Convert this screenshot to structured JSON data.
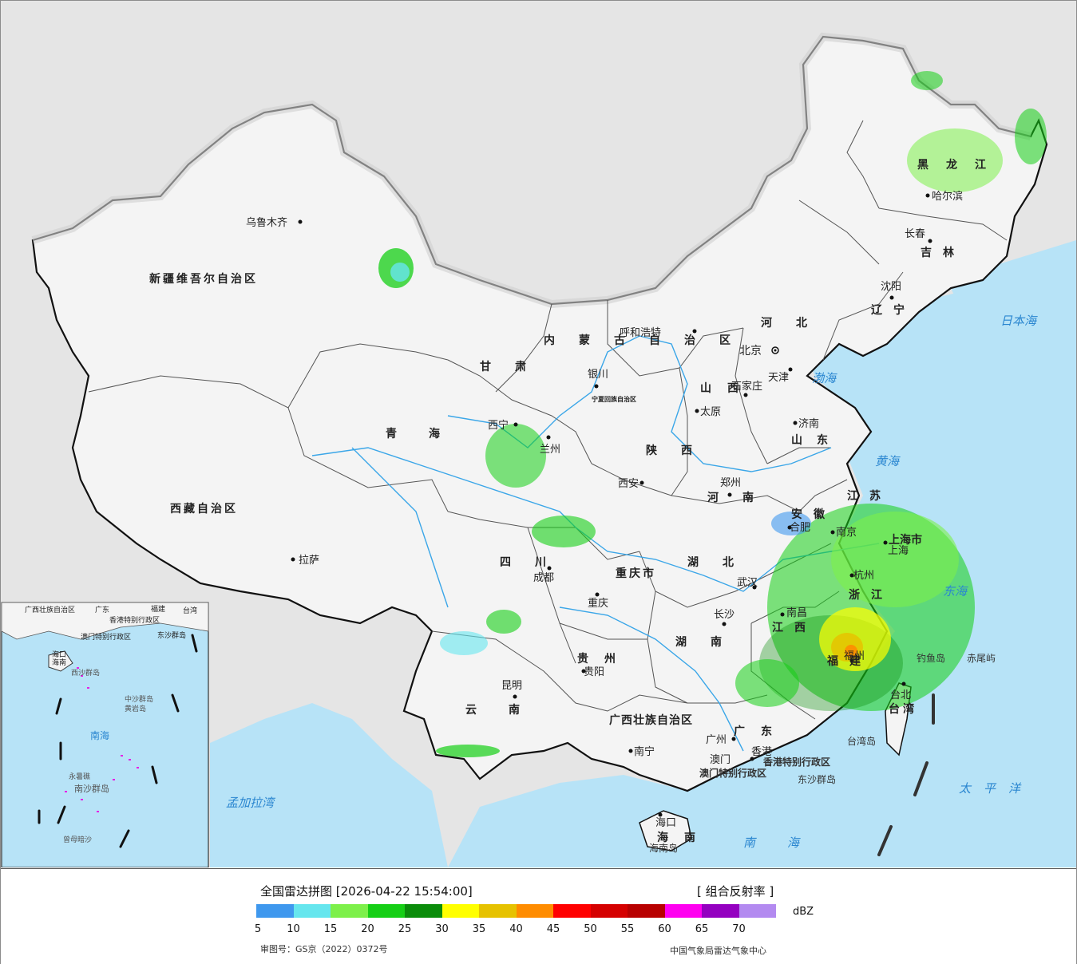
{
  "map": {
    "provinces": [
      "新疆维吾尔自治区",
      "西藏自治区",
      "青海",
      "甘肃",
      "内蒙古自治区",
      "黑龙江",
      "吉林",
      "辽宁",
      "河北",
      "山西",
      "陕西",
      "四川",
      "重庆市",
      "贵州",
      "云南",
      "广西壮族自治区",
      "广东",
      "海南",
      "湖南",
      "湖北",
      "河南",
      "山东",
      "江苏",
      "安徽",
      "浙江",
      "江西",
      "福建",
      "上海市",
      "台湾",
      "宁夏回族自治区"
    ],
    "cities": [
      "乌鲁木齐",
      "拉萨",
      "西宁",
      "兰州",
      "银川",
      "呼和浩特",
      "北京",
      "天津",
      "石家庄",
      "太原",
      "济南",
      "西安",
      "郑州",
      "成都",
      "重庆",
      "贵阳",
      "昆明",
      "南宁",
      "广州",
      "澳门",
      "香港",
      "长沙",
      "武汉",
      "南昌",
      "福州",
      "杭州",
      "南京",
      "合肥",
      "上海",
      "台北",
      "沈阳",
      "长春",
      "哈尔滨",
      "海口"
    ],
    "seas": [
      "日本海",
      "渤海",
      "黄海",
      "东海",
      "太平洋",
      "南海",
      "孟加拉湾"
    ],
    "islands": [
      "钓鱼岛",
      "赤尾屿",
      "台湾岛",
      "东沙群岛",
      "海南岛"
    ],
    "special_regions": [
      "香港特别行政区",
      "澳门特别行政区"
    ],
    "inset": {
      "labels": [
        "广西壮族自治区",
        "广东",
        "福建",
        "台湾",
        "香港特别行政区",
        "澳门特别行政区",
        "东沙群岛",
        "海口",
        "海南",
        "西沙群岛",
        "中沙群岛",
        "黄岩岛",
        "南海",
        "永暑礁",
        "南沙群岛",
        "曾母暗沙"
      ]
    },
    "colors": {
      "land": "#f2f2f2",
      "sea": "#b7e3f7",
      "foreign": "#e5e5e5",
      "border": "#111111",
      "river": "#3aa6e8"
    }
  },
  "legend": {
    "title": "全国雷达拼图 [2026-04-22 15:54:00]",
    "product": "[ 组合反射率 ]",
    "unit": "dBZ",
    "ticks": [
      "5",
      "10",
      "15",
      "20",
      "25",
      "30",
      "35",
      "40",
      "45",
      "50",
      "55",
      "60",
      "65",
      "70"
    ],
    "colors": [
      "#3f98ee",
      "#66e6ee",
      "#7df04a",
      "#15cf15",
      "#0a8c0a",
      "#ffff00",
      "#e6c200",
      "#ff8c00",
      "#ff0000",
      "#d50000",
      "#b80000",
      "#ff00f0",
      "#9400c0",
      "#b38af0"
    ],
    "approval_number": "审图号：GS京（2022）0372号",
    "agency": "中国气象局雷达气象中心"
  }
}
